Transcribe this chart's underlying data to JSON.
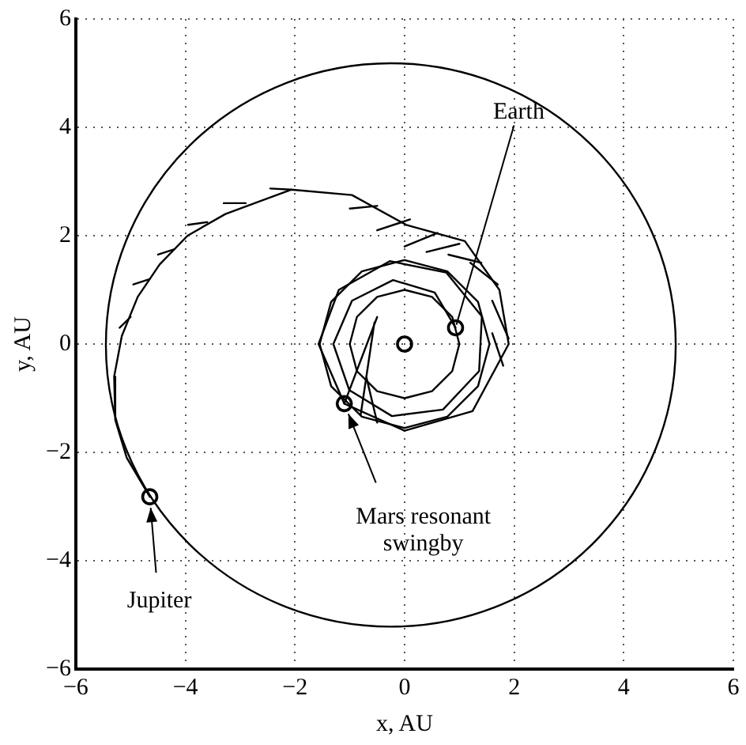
{
  "chart_data": {
    "type": "line",
    "xlabel": "x, AU",
    "ylabel": "y, AU",
    "xlim": [
      -6,
      6
    ],
    "ylim": [
      -6,
      6
    ],
    "xticks": [
      -6,
      -4,
      -2,
      0,
      2,
      4,
      6
    ],
    "yticks": [
      -6,
      -4,
      -2,
      0,
      2,
      4,
      6
    ],
    "grid": true,
    "legend": false,
    "line_style": "solid",
    "annotations": [
      {
        "text": "Earth",
        "x": 0.93,
        "y": 0.3
      },
      {
        "text": "Mars resonant\nswingby",
        "x": -1.1,
        "y": -1.1
      },
      {
        "text": "Jupiter",
        "x": -4.65,
        "y": -2.82
      }
    ],
    "series": [
      {
        "type": "line",
        "color": "#000000",
        "marker": "none",
        "x": [
          1,
          0.87,
          0.5,
          0,
          -0.5,
          -0.87,
          -1
        ],
        "values": [
          0,
          0.5,
          0.87,
          1,
          0.87,
          0.5,
          0
        ]
      },
      {
        "type": "line",
        "color": "#000000",
        "marker": "none",
        "x": [
          -1,
          -0.87,
          -0.5,
          0,
          0.5,
          0.87,
          1
        ],
        "values": [
          0,
          -0.5,
          -0.87,
          -1,
          -0.87,
          -0.5,
          0
        ]
      },
      {
        "type": "line",
        "color": "#000000",
        "marker": "none",
        "x": [
          1.55,
          1.34,
          0.78,
          0,
          -0.78,
          -1.34,
          -1.55
        ],
        "values": [
          0,
          0.78,
          1.34,
          1.55,
          1.34,
          0.78,
          0
        ]
      },
      {
        "type": "line",
        "color": "#000000",
        "marker": "none",
        "x": [
          -1.55,
          -1.34,
          -0.78,
          0,
          0.78,
          1.34,
          1.55
        ],
        "values": [
          0,
          -0.78,
          -1.34,
          -1.55,
          -1.34,
          -0.78,
          0
        ]
      },
      {
        "type": "line",
        "color": "#000000",
        "marker": "none",
        "x": [
          0.93,
          0.55,
          -0.21,
          -0.96,
          -1.3,
          null,
          -1.3,
          -1.01,
          -0.23,
          0.7,
          1.36,
          1.41,
          null,
          1.41,
          0.76,
          -0.27,
          -1.2,
          -1.57,
          null,
          -1.57,
          -1.1,
          0,
          1.24,
          1.9,
          null,
          1.9,
          1.73,
          1.1,
          0.03,
          -0.96,
          -2.07,
          -3.27,
          -3.96,
          -4.47,
          -4.87,
          -5.16,
          -5.3,
          null,
          -5.3,
          -5.28,
          -5.07,
          -4.65
        ],
        "values": [
          0.3,
          0.95,
          1.18,
          0.8,
          0,
          null,
          0,
          -0.85,
          -1.33,
          -1.21,
          -0.5,
          0.51,
          null,
          0.51,
          1.32,
          1.53,
          1.0,
          0,
          null,
          0,
          -1.1,
          -1.6,
          -1.24,
          0,
          null,
          0,
          1.0,
          1.9,
          2.2,
          2.75,
          2.85,
          2.4,
          2.0,
          1.47,
          0.87,
          0.15,
          -0.6,
          null,
          -0.6,
          -1.4,
          -2.1,
          -2.82
        ]
      },
      {
        "type": "line",
        "color": "#000000",
        "marker": "none",
        "x": [
          -2.07,
          -2.45,
          null,
          -2.9,
          -3.3,
          null,
          -3.6,
          -3.95,
          null,
          -4.2,
          -4.5,
          null,
          -4.65,
          -4.95,
          null,
          -5.0,
          -5.2,
          null,
          -0.5,
          -1.0,
          null,
          0.1,
          -0.5,
          null,
          0.6,
          0.0,
          null,
          1.0,
          0.4,
          null,
          1.4,
          0.8,
          null,
          1.7,
          1.2,
          null,
          1.9,
          1.6,
          null,
          1.8,
          1.6,
          null,
          -1.1,
          -0.5,
          null,
          -0.8,
          -0.55,
          null,
          -0.5,
          -0.7
        ],
        "values": [
          2.85,
          2.87,
          null,
          2.6,
          2.6,
          null,
          2.25,
          2.2,
          null,
          1.75,
          1.65,
          null,
          1.2,
          1.1,
          null,
          0.5,
          0.3,
          null,
          2.55,
          2.5,
          null,
          2.3,
          2.1,
          null,
          2.05,
          1.8,
          null,
          1.85,
          1.7,
          null,
          1.5,
          1.65,
          null,
          1.1,
          1.5,
          null,
          0.1,
          0.8,
          null,
          -0.4,
          0.2,
          null,
          -1.1,
          0.5,
          null,
          -1.3,
          0.4,
          null,
          -1.45,
          -0.6
        ]
      },
      {
        "type": "scatter",
        "color": "#000000",
        "marker": "circle",
        "x": [
          0,
          0.93,
          -1.1,
          -4.65
        ],
        "values": [
          0,
          0.3,
          -1.1,
          -2.82
        ]
      }
    ]
  }
}
